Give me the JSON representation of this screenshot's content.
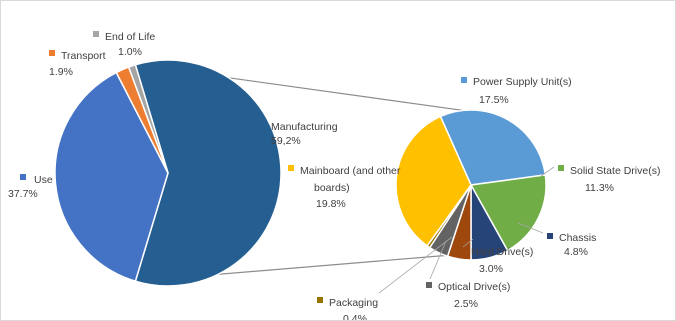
{
  "chart_data": {
    "type": "pie",
    "main_pie": {
      "slices": [
        {
          "name": "Manufacturing",
          "value": 59.2,
          "value_label": "59,2%",
          "color": "#255e91"
        },
        {
          "name": "Use",
          "value": 37.7,
          "value_label": "37.7%",
          "color": "#4472c4"
        },
        {
          "name": "Transport",
          "value": 1.9,
          "value_label": "1.9%",
          "color": "#ed7d31"
        },
        {
          "name": "End of Life",
          "value": 1.0,
          "value_label": "1.0%",
          "color": "#a5a5a5"
        }
      ]
    },
    "exploded_pie": {
      "parent": "Manufacturing",
      "slices": [
        {
          "name": "Power Supply Unit(s)",
          "value": 17.5,
          "value_label": "17.5%",
          "color": "#5b9bd5"
        },
        {
          "name": "Solid State Drive(s)",
          "value": 11.3,
          "value_label": "11.3%",
          "color": "#70ad47"
        },
        {
          "name": "Chassis",
          "value": 4.8,
          "value_label": "4.8%",
          "color": "#264478"
        },
        {
          "name": "Hard Drive(s)",
          "value": 3.0,
          "value_label": "3.0%",
          "color": "#9e480e"
        },
        {
          "name": "Optical Drive(s)",
          "value": 2.5,
          "value_label": "2.5%",
          "color": "#636363"
        },
        {
          "name": "Packaging",
          "value": 0.4,
          "value_label": "0.4%",
          "color": "#997300"
        },
        {
          "name": "Mainboard (and other boards)",
          "value": 19.8,
          "value_label": "19.8%",
          "color": "#ffc000"
        }
      ]
    },
    "legend": "none",
    "grid": false
  }
}
